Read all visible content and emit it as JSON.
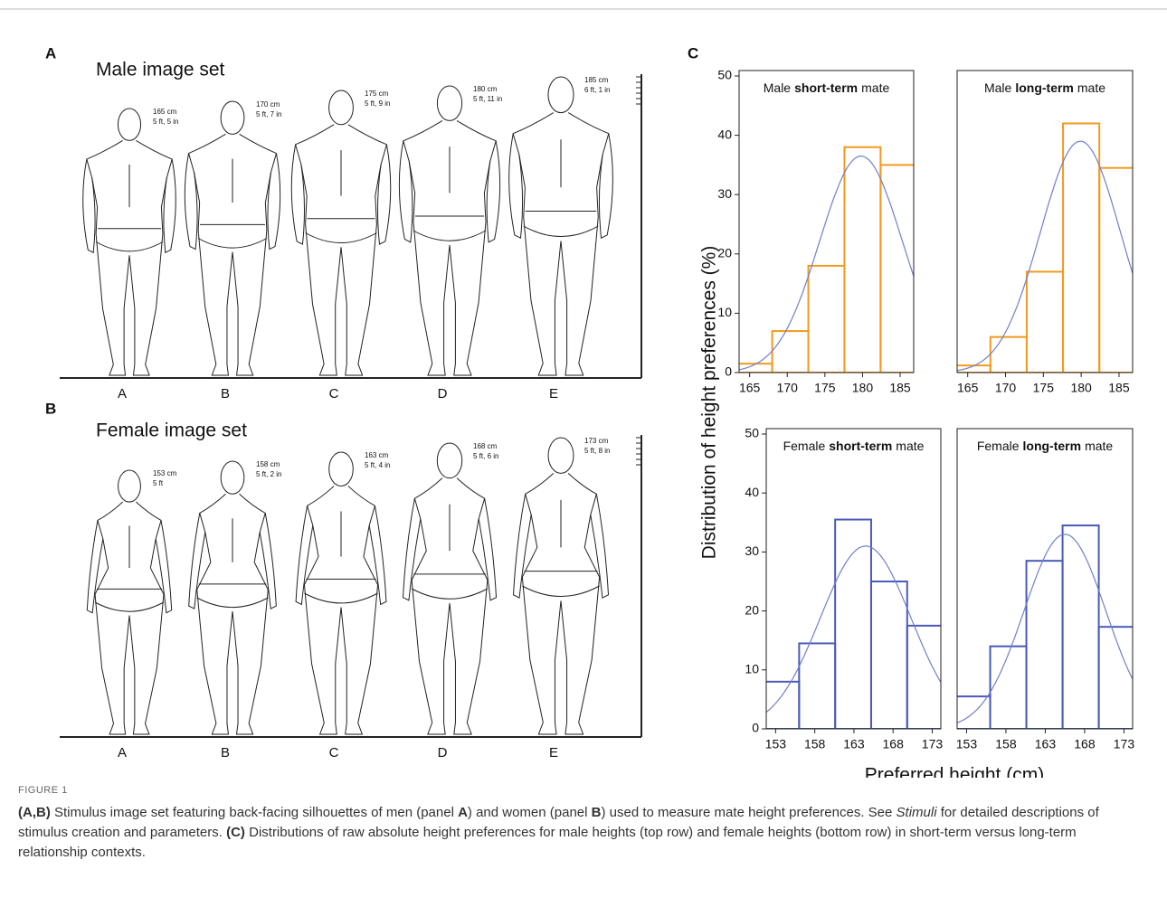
{
  "figure_label": "FIGURE 1",
  "panels": [
    {
      "label": "A",
      "title": "Male image set",
      "figures": [
        {
          "letter": "A",
          "cm": "165 cm",
          "ft": "5 ft, 5 in"
        },
        {
          "letter": "B",
          "cm": "170 cm",
          "ft": "5 ft, 7 in"
        },
        {
          "letter": "C",
          "cm": "175 cm",
          "ft": "5 ft, 9 in"
        },
        {
          "letter": "D",
          "cm": "180 cm",
          "ft": "5 ft, 11 in"
        },
        {
          "letter": "E",
          "cm": "185 cm",
          "ft": "6 ft, 1 in"
        }
      ]
    },
    {
      "label": "B",
      "title": "Female image set",
      "figures": [
        {
          "letter": "A",
          "cm": "153 cm",
          "ft": "5 ft"
        },
        {
          "letter": "B",
          "cm": "158 cm",
          "ft": "5 ft, 2 in"
        },
        {
          "letter": "C",
          "cm": "163 cm",
          "ft": "5 ft, 4 in"
        },
        {
          "letter": "D",
          "cm": "168 cm",
          "ft": "5 ft, 6 in"
        },
        {
          "letter": "E",
          "cm": "173 cm",
          "ft": "5 ft, 8 in"
        }
      ]
    }
  ],
  "panel_c": {
    "label": "C",
    "ylabel": "Distribution of height preferences (%)",
    "xlabel": "Preferred height (cm)"
  },
  "chart_data": [
    {
      "type": "histogram",
      "title_parts": [
        {
          "text": "Male"
        },
        {
          "text": "short-term",
          "bold": true
        },
        {
          "text": "mate"
        }
      ],
      "bins": [
        163.2,
        168,
        172.8,
        177.6,
        182.4,
        187.2
      ],
      "values": [
        1.5,
        7,
        18,
        38,
        35
      ],
      "color": "#f29a1e",
      "fit": {
        "mean": 179.8,
        "sd": 5.5,
        "peak": 36.5,
        "color": "#6f7fd0"
      },
      "xlim": [
        163.6,
        186.8
      ],
      "xticks": [
        165,
        170,
        175,
        180,
        185
      ],
      "ylim": [
        0,
        50
      ],
      "yticks": [
        0,
        10,
        20,
        30,
        40,
        50
      ]
    },
    {
      "type": "histogram",
      "title_parts": [
        {
          "text": "Male"
        },
        {
          "text": "long-term",
          "bold": true
        },
        {
          "text": "mate"
        }
      ],
      "bins": [
        163.2,
        168,
        172.8,
        177.6,
        182.4,
        187.2
      ],
      "values": [
        1.2,
        6,
        17,
        42,
        34.5
      ],
      "color": "#f29a1e",
      "fit": {
        "mean": 179.9,
        "sd": 5.3,
        "peak": 39,
        "color": "#6f7fd0"
      },
      "xlim": [
        163.6,
        186.8
      ],
      "xticks": [
        165,
        170,
        175,
        180,
        185
      ],
      "ylim": [
        0,
        50
      ]
    },
    {
      "type": "histogram",
      "title_parts": [
        {
          "text": "Female"
        },
        {
          "text": "short-term",
          "bold": true
        },
        {
          "text": "mate"
        }
      ],
      "bins": [
        151.4,
        156,
        160.6,
        165.2,
        169.8,
        174.4
      ],
      "values": [
        8,
        14.5,
        35.5,
        25,
        17.5
      ],
      "color": "#4a5ab8",
      "fit": {
        "mean": 164.5,
        "sd": 5.8,
        "peak": 31,
        "color": "#6f7fd0"
      },
      "xlim": [
        151.8,
        174.1
      ],
      "xticks": [
        153,
        158,
        163,
        168,
        173
      ],
      "ylim": [
        0,
        50
      ],
      "yticks": [
        0,
        10,
        20,
        30,
        40,
        50
      ]
    },
    {
      "type": "histogram",
      "title_parts": [
        {
          "text": "Female"
        },
        {
          "text": "long-term",
          "bold": true
        },
        {
          "text": "mate"
        }
      ],
      "bins": [
        151.4,
        156,
        160.6,
        165.2,
        169.8,
        174.4
      ],
      "values": [
        5.5,
        14,
        28.5,
        34.5,
        17.3
      ],
      "color": "#4a5ab8",
      "fit": {
        "mean": 165.5,
        "sd": 5.2,
        "peak": 33,
        "color": "#6f7fd0"
      },
      "xlim": [
        151.8,
        174.1
      ],
      "xticks": [
        153,
        158,
        163,
        168,
        173
      ],
      "ylim": [
        0,
        50
      ]
    }
  ],
  "caption": [
    {
      "text": "(A,B)",
      "style": "b"
    },
    {
      "text": " Stimulus image set featuring back-facing silhouettes of men (panel "
    },
    {
      "text": "A",
      "style": "b"
    },
    {
      "text": ") and women (panel "
    },
    {
      "text": "B",
      "style": "b"
    },
    {
      "text": ") used to measure mate height preferences. See "
    },
    {
      "text": "Stimuli",
      "style": "i"
    },
    {
      "text": " for detailed descriptions of stimulus creation and parameters. "
    },
    {
      "text": "(C)",
      "style": "b"
    },
    {
      "text": " Distributions of raw absolute height preferences for male heights (top row) and female heights (bottom row) in short-term versus long-term relationship contexts."
    }
  ]
}
